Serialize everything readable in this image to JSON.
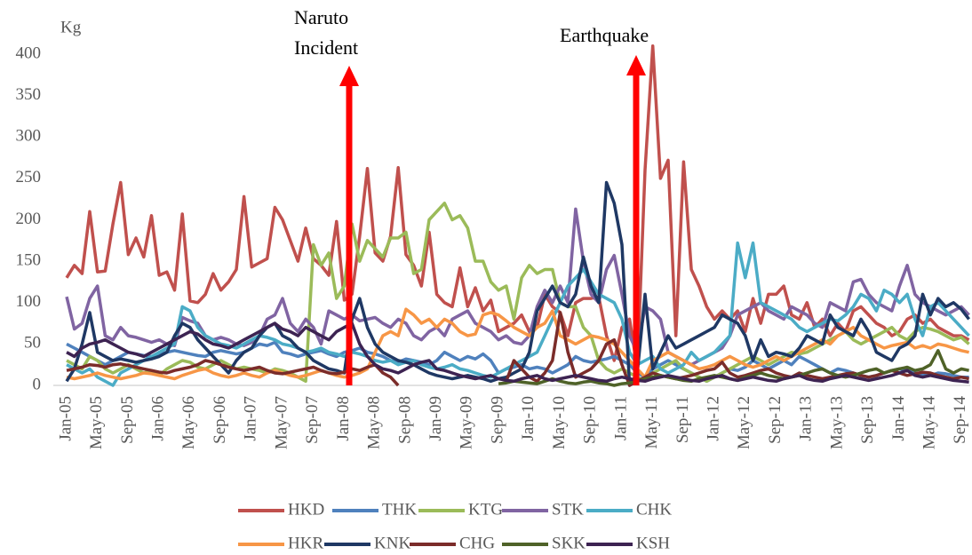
{
  "chart_data": {
    "type": "line",
    "y_label": "Kg",
    "annotations": [
      {
        "lines": [
          "Naruto",
          "Incident"
        ]
      },
      {
        "lines": [
          "Earthquake"
        ]
      }
    ],
    "ylim": [
      0,
      400
    ],
    "yticks": [
      0,
      50,
      100,
      150,
      200,
      250,
      300,
      350,
      400
    ],
    "grid": false,
    "categories": [
      "Jan-05",
      null,
      null,
      null,
      "May-05",
      null,
      null,
      null,
      "Sep-05",
      null,
      null,
      null,
      "Jan-06",
      null,
      null,
      null,
      "May-06",
      null,
      null,
      null,
      "Sep-06",
      null,
      null,
      null,
      "Jan-07",
      null,
      null,
      null,
      "May-07",
      null,
      null,
      null,
      "Sep-07",
      null,
      null,
      null,
      "Jan-08",
      null,
      null,
      null,
      "May-08",
      null,
      null,
      null,
      "Sep-08",
      null,
      null,
      null,
      "Jan-09",
      null,
      null,
      null,
      "May-09",
      null,
      null,
      null,
      "Sep-09",
      null,
      null,
      null,
      "Jan-10",
      null,
      null,
      null,
      "May-10",
      null,
      null,
      null,
      "Sep-10",
      null,
      null,
      null,
      "Jan-11",
      null,
      null,
      null,
      "May-11",
      null,
      null,
      null,
      "Sep-11",
      null,
      null,
      null,
      "Jan-12",
      null,
      null,
      null,
      "May-12",
      null,
      null,
      null,
      "Sep-12",
      null,
      null,
      null,
      "Jan-13",
      null,
      null,
      null,
      "May-13",
      null,
      null,
      null,
      "Sep-13",
      null,
      null,
      null,
      "Jan-14",
      null,
      null,
      null,
      "May-14",
      null,
      null,
      null,
      "Sep-14",
      null
    ],
    "legend": "bottom",
    "series": [
      {
        "name": "HKD",
        "color": "#c0504d",
        "values": [
          130,
          145,
          135,
          210,
          137,
          138,
          195,
          245,
          158,
          178,
          155,
          205,
          133,
          137,
          115,
          207,
          102,
          100,
          110,
          135,
          115,
          125,
          140,
          228,
          143,
          148,
          153,
          215,
          200,
          175,
          150,
          190,
          153,
          145,
          133,
          198,
          103,
          110,
          180,
          262,
          160,
          150,
          180,
          263,
          158,
          145,
          120,
          185,
          110,
          100,
          95,
          142,
          95,
          118,
          90,
          103,
          65,
          70,
          75,
          85,
          65,
          70,
          110,
          95,
          88,
          60,
          100,
          105,
          105,
          107,
          60,
          30,
          70,
          80,
          20,
          260,
          410,
          250,
          272,
          60,
          270,
          140,
          120,
          95,
          80,
          90,
          80,
          90,
          65,
          105,
          75,
          110,
          110,
          120,
          85,
          80,
          100,
          70,
          80,
          60,
          75,
          65,
          90,
          95,
          85,
          75,
          70,
          60,
          65,
          80,
          85,
          75,
          80,
          70,
          65,
          60,
          60,
          55
        ]
      },
      {
        "name": "THK",
        "color": "#4f81bd",
        "values": [
          50,
          45,
          40,
          35,
          30,
          25,
          30,
          35,
          40,
          38,
          36,
          35,
          38,
          40,
          42,
          40,
          38,
          36,
          35,
          40,
          42,
          40,
          38,
          40,
          45,
          50,
          48,
          52,
          40,
          38,
          35,
          38,
          40,
          42,
          38,
          35,
          40,
          42,
          45,
          40,
          38,
          35,
          30,
          28,
          32,
          30,
          28,
          25,
          30,
          40,
          35,
          30,
          35,
          32,
          38,
          30,
          15,
          20,
          22,
          25,
          20,
          22,
          20,
          15,
          20,
          25,
          35,
          30,
          28,
          30,
          32,
          35,
          30,
          25,
          15,
          10,
          20,
          25,
          30,
          25,
          20,
          15,
          10,
          5,
          10,
          15,
          20,
          18,
          22,
          30,
          25,
          20,
          25,
          30,
          25,
          35,
          30,
          25,
          20,
          15,
          20,
          18,
          15,
          12,
          10,
          12,
          15,
          18,
          20,
          18,
          15,
          12,
          12,
          15,
          14,
          12,
          10,
          10
        ]
      },
      {
        "name": "KTG",
        "color": "#9bbb59",
        "values": [
          30,
          25,
          20,
          35,
          30,
          20,
          15,
          20,
          25,
          20,
          15,
          18,
          12,
          20,
          25,
          30,
          28,
          22,
          20,
          25,
          30,
          25,
          20,
          22,
          20,
          18,
          15,
          20,
          18,
          15,
          10,
          5,
          170,
          145,
          160,
          105,
          120,
          195,
          150,
          175,
          165,
          155,
          178,
          178,
          185,
          135,
          140,
          200,
          210,
          220,
          200,
          205,
          190,
          150,
          150,
          125,
          115,
          120,
          80,
          130,
          145,
          135,
          140,
          140,
          100,
          95,
          95,
          70,
          60,
          30,
          20,
          15,
          20,
          15,
          10,
          5,
          15,
          20,
          25,
          30,
          20,
          15,
          10,
          5,
          10,
          15,
          20,
          25,
          30,
          35,
          30,
          25,
          30,
          35,
          40,
          38,
          40,
          45,
          50,
          55,
          60,
          65,
          55,
          50,
          55,
          60,
          65,
          70,
          60,
          55,
          65,
          70,
          68,
          65,
          60,
          55,
          58,
          50
        ]
      },
      {
        "name": "STK",
        "color": "#8064a2",
        "values": [
          107,
          68,
          75,
          105,
          120,
          60,
          55,
          70,
          60,
          58,
          55,
          52,
          55,
          50,
          48,
          82,
          78,
          75,
          60,
          55,
          58,
          55,
          50,
          48,
          52,
          60,
          80,
          85,
          105,
          75,
          65,
          80,
          70,
          50,
          90,
          85,
          80,
          85,
          78,
          80,
          82,
          75,
          70,
          80,
          75,
          60,
          55,
          65,
          70,
          60,
          80,
          85,
          90,
          75,
          70,
          65,
          55,
          60,
          52,
          50,
          60,
          95,
          115,
          100,
          120,
          100,
          213,
          150,
          110,
          100,
          140,
          157,
          110,
          60,
          40,
          95,
          90,
          80,
          40,
          35,
          30,
          25,
          30,
          35,
          40,
          45,
          60,
          85,
          90,
          95,
          100,
          90,
          85,
          80,
          95,
          90,
          85,
          75,
          70,
          100,
          95,
          90,
          125,
          128,
          110,
          100,
          95,
          90,
          120,
          145,
          110,
          100,
          95,
          90,
          85,
          90,
          95,
          85
        ]
      },
      {
        "name": "CHK",
        "color": "#4bacc6",
        "values": [
          25,
          20,
          15,
          20,
          10,
          5,
          0,
          15,
          20,
          25,
          30,
          35,
          40,
          45,
          50,
          95,
          90,
          70,
          60,
          55,
          50,
          48,
          45,
          50,
          55,
          60,
          58,
          55,
          50,
          48,
          45,
          40,
          42,
          45,
          40,
          38,
          35,
          40,
          38,
          35,
          30,
          28,
          30,
          25,
          28,
          30,
          25,
          22,
          20,
          22,
          25,
          20,
          18,
          15,
          12,
          10,
          15,
          20,
          25,
          30,
          35,
          40,
          60,
          80,
          100,
          120,
          130,
          140,
          125,
          110,
          105,
          100,
          80,
          40,
          25,
          30,
          35,
          20,
          15,
          20,
          25,
          40,
          30,
          35,
          40,
          50,
          60,
          172,
          130,
          172,
          100,
          95,
          90,
          85,
          80,
          70,
          65,
          70,
          75,
          80,
          78,
          85,
          95,
          110,
          105,
          90,
          115,
          110,
          100,
          110,
          80,
          60,
          95,
          100,
          90,
          80,
          70,
          60
        ]
      },
      {
        "name": "HKR",
        "color": "#f79646",
        "values": [
          10,
          8,
          10,
          12,
          15,
          12,
          10,
          8,
          10,
          12,
          15,
          14,
          12,
          10,
          8,
          12,
          15,
          18,
          20,
          15,
          12,
          10,
          12,
          15,
          12,
          10,
          15,
          18,
          15,
          12,
          10,
          12,
          15,
          18,
          15,
          12,
          10,
          12,
          15,
          20,
          40,
          60,
          65,
          60,
          92,
          85,
          75,
          80,
          70,
          80,
          75,
          65,
          60,
          62,
          85,
          88,
          85,
          78,
          70,
          65,
          60,
          70,
          75,
          90,
          60,
          55,
          50,
          55,
          60,
          58,
          55,
          50,
          40,
          30,
          20,
          10,
          30,
          35,
          40,
          35,
          30,
          25,
          20,
          22,
          25,
          30,
          35,
          30,
          25,
          22,
          25,
          30,
          35,
          30,
          35,
          40,
          45,
          50,
          55,
          50,
          60,
          65,
          70,
          60,
          55,
          50,
          45,
          48,
          50,
          52,
          45,
          48,
          45,
          50,
          48,
          45,
          42,
          40
        ]
      },
      {
        "name": "KNK",
        "color": "#1f3864",
        "values": [
          5,
          20,
          50,
          88,
          40,
          35,
          30,
          32,
          30,
          28,
          30,
          32,
          35,
          40,
          60,
          75,
          70,
          55,
          45,
          35,
          25,
          15,
          30,
          40,
          45,
          60,
          70,
          75,
          60,
          55,
          45,
          40,
          30,
          25,
          20,
          18,
          15,
          80,
          105,
          70,
          50,
          40,
          35,
          30,
          28,
          25,
          20,
          15,
          12,
          10,
          8,
          10,
          12,
          10,
          8,
          5,
          8,
          10,
          15,
          20,
          40,
          90,
          105,
          120,
          100,
          95,
          110,
          155,
          120,
          100,
          245,
          220,
          170,
          0,
          15,
          110,
          20,
          40,
          60,
          45,
          50,
          55,
          60,
          65,
          70,
          85,
          80,
          75,
          60,
          30,
          55,
          35,
          40,
          38,
          35,
          45,
          60,
          55,
          50,
          85,
          70,
          65,
          60,
          80,
          65,
          40,
          35,
          30,
          45,
          50,
          60,
          110,
          85,
          105,
          95,
          100,
          92,
          80
        ]
      },
      {
        "name": "CHG",
        "color": "#7b2c2a",
        "values": [
          18,
          20,
          22,
          25,
          24,
          22,
          25,
          26,
          24,
          22,
          20,
          18,
          16,
          15,
          18,
          20,
          22,
          25,
          30,
          28,
          25,
          22,
          20,
          18,
          20,
          22,
          18,
          15,
          14,
          16,
          18,
          20,
          22,
          18,
          15,
          14,
          16,
          20,
          18,
          22,
          25,
          15,
          10,
          0,
          null,
          null,
          null,
          null,
          null,
          null,
          null,
          null,
          null,
          null,
          null,
          null,
          null,
          5,
          30,
          20,
          10,
          5,
          15,
          30,
          88,
          40,
          10,
          15,
          20,
          30,
          50,
          55,
          25,
          0,
          5,
          10,
          15,
          12,
          10,
          8,
          10,
          12,
          15,
          18,
          20,
          28,
          15,
          10,
          12,
          15,
          18,
          20,
          15,
          12,
          10,
          15,
          12,
          10,
          8,
          10,
          12,
          14,
          15,
          12,
          10,
          12,
          15,
          18,
          15,
          12,
          14,
          16,
          15,
          12,
          10,
          8,
          10,
          8
        ]
      },
      {
        "name": "SKK",
        "color": "#4f6228",
        "values": [
          null,
          null,
          null,
          null,
          null,
          null,
          null,
          null,
          null,
          null,
          null,
          null,
          null,
          null,
          null,
          null,
          null,
          null,
          null,
          null,
          null,
          null,
          null,
          null,
          null,
          null,
          null,
          null,
          null,
          null,
          null,
          null,
          null,
          null,
          null,
          null,
          null,
          null,
          null,
          null,
          null,
          null,
          null,
          null,
          null,
          null,
          null,
          null,
          null,
          null,
          null,
          null,
          null,
          null,
          null,
          null,
          2,
          3,
          5,
          4,
          3,
          2,
          5,
          8,
          5,
          3,
          2,
          4,
          5,
          3,
          2,
          0,
          2,
          3,
          5,
          8,
          10,
          12,
          10,
          8,
          6,
          5,
          8,
          10,
          12,
          10,
          8,
          6,
          10,
          12,
          15,
          12,
          10,
          8,
          10,
          12,
          15,
          18,
          20,
          15,
          12,
          10,
          12,
          15,
          18,
          20,
          15,
          18,
          20,
          22,
          18,
          20,
          25,
          42,
          20,
          15,
          20,
          18
        ]
      },
      {
        "name": "KSH",
        "color": "#3d2352",
        "values": [
          40,
          35,
          45,
          50,
          52,
          55,
          50,
          45,
          40,
          38,
          35,
          40,
          45,
          50,
          55,
          60,
          65,
          62,
          55,
          50,
          48,
          45,
          50,
          55,
          60,
          65,
          70,
          75,
          68,
          65,
          60,
          70,
          65,
          60,
          55,
          65,
          70,
          75,
          50,
          35,
          25,
          20,
          18,
          15,
          20,
          25,
          28,
          30,
          20,
          18,
          15,
          12,
          10,
          8,
          10,
          12,
          8,
          6,
          5,
          8,
          10,
          12,
          8,
          6,
          8,
          10,
          12,
          10,
          8,
          6,
          5,
          8,
          10,
          8,
          6,
          5,
          8,
          10,
          12,
          10,
          8,
          6,
          5,
          8,
          10,
          12,
          8,
          6,
          8,
          10,
          8,
          6,
          5,
          8,
          10,
          12,
          8,
          6,
          5,
          8,
          10,
          12,
          10,
          8,
          6,
          8,
          10,
          12,
          15,
          18,
          12,
          10,
          12,
          10,
          8,
          6,
          5,
          4
        ]
      }
    ]
  }
}
